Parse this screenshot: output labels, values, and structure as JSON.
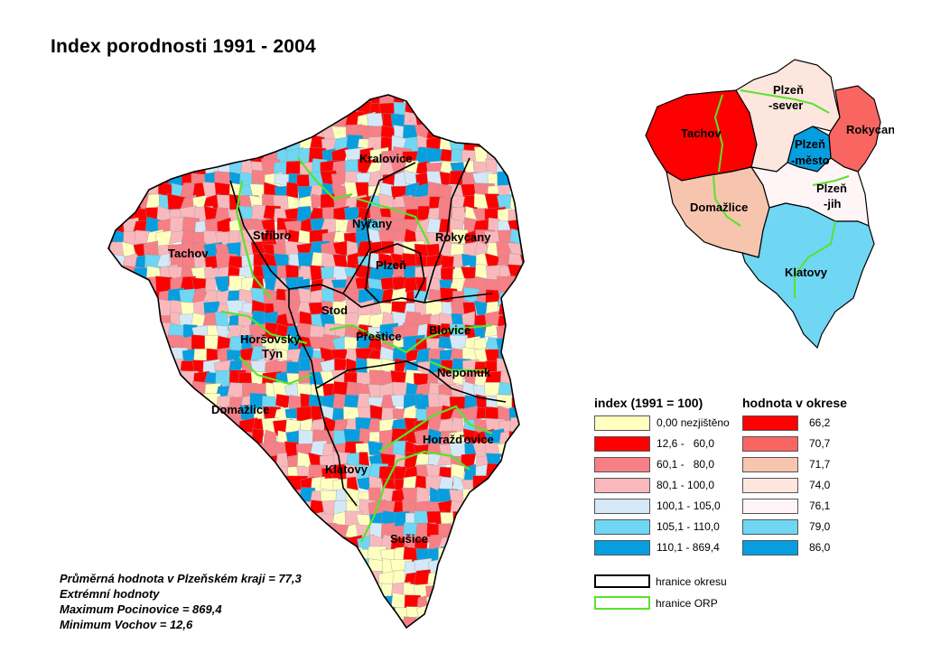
{
  "title": "Index porodnosti 1991 - 2004",
  "colors": {
    "c0": "#ffffc0",
    "c1": "#ff0000",
    "c2": "#f77f86",
    "c3": "#f9b9bc",
    "c4": "#d4e8f7",
    "c5": "#6fd6f3",
    "c6": "#079ee0",
    "district_border": "#000000",
    "orp_border": "#5ae22a"
  },
  "main_map": {
    "labels": [
      "Kralovice",
      "Nýřany",
      "Stříbro",
      "Rokycany",
      "Tachov",
      "Plzeň",
      "Stod",
      "Horšovský",
      "Týn",
      "Přeštice",
      "Blovice",
      "Nepomuk",
      "Domažlice",
      "Horažďovice",
      "Klatovy",
      "Sušice"
    ]
  },
  "mini_map": {
    "labels": [
      "Plzeň",
      "-sever",
      "Tachov",
      "Rokycany",
      "Plzeň",
      "-město",
      "Plzeň",
      "-jih",
      "Domažlice",
      "Klatovy"
    ]
  },
  "legend": {
    "index_title": "index (1991 = 100)",
    "index_items": [
      {
        "label": "0,00 nezjištěno",
        "color": "#ffffc0"
      },
      {
        "label": "12,6 -   60,0",
        "color": "#ff0000"
      },
      {
        "label": "60,1 -   80,0",
        "color": "#f77f86"
      },
      {
        "label": "80,1 - 100,0",
        "color": "#f9b9bc"
      },
      {
        "label": "100,1 - 105,0",
        "color": "#d4e8f7"
      },
      {
        "label": "105,1 - 110,0",
        "color": "#6fd6f3"
      },
      {
        "label": "110,1 - 869,4",
        "color": "#079ee0"
      }
    ],
    "district_title": "hodnota v okrese",
    "district_items": [
      {
        "label": "66,2",
        "color": "#ff0000"
      },
      {
        "label": "70,7",
        "color": "#f96662"
      },
      {
        "label": "71,7",
        "color": "#f7c5ae"
      },
      {
        "label": "74,0",
        "color": "#fde6dd"
      },
      {
        "label": "76,1",
        "color": "#fff5f7"
      },
      {
        "label": "79,0",
        "color": "#6fd6f3"
      },
      {
        "label": "86,0",
        "color": "#079ee0"
      }
    ],
    "border_items": [
      {
        "label": "hranice okresu",
        "color": "#000000"
      },
      {
        "label": "hranice ORP",
        "color": "#5ae22a"
      }
    ]
  },
  "stats": {
    "line1": "Průměrná hodnota v Plzeňském kraji = 77,3",
    "line2": "Extrémní hodnoty",
    "line3": "Maximum Pocinovice = 869,4",
    "line4": "Minimum  Vochov = 12,6"
  }
}
